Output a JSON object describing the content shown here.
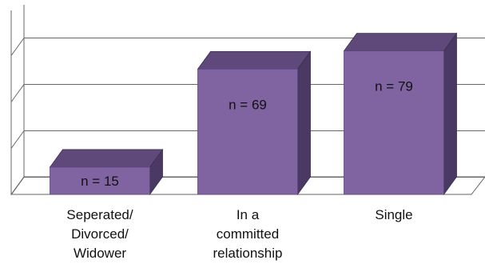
{
  "chart_data": {
    "type": "bar",
    "categories": [
      "Seperated/\nDivorced/\nWidower",
      "In a\ncommitted\nrelationship",
      "Single"
    ],
    "values": [
      15,
      69,
      79
    ],
    "data_labels": [
      "n = 15",
      "n = 69",
      "n = 79"
    ],
    "ylim": [
      0,
      85
    ],
    "grid": true,
    "three_d": true,
    "colors": {
      "front": "#8064A2",
      "top": "#5F497A",
      "side": "#4A3A63",
      "grid": "#666666",
      "floor": "#666666"
    }
  }
}
